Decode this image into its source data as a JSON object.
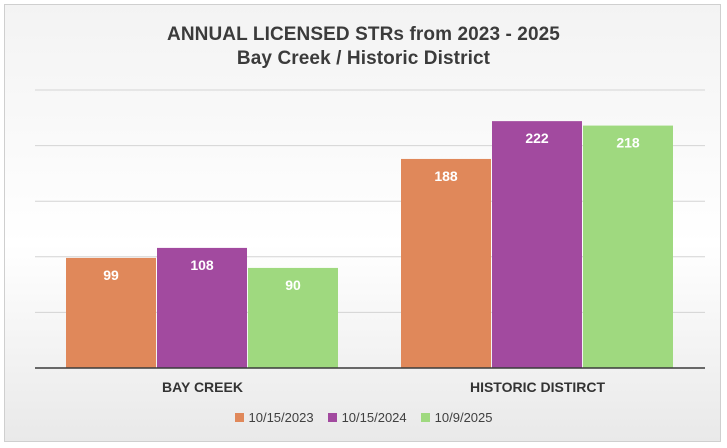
{
  "chart_data": {
    "type": "bar",
    "title": "ANNUAL LICENSED STRs from 2023 - 2025",
    "subtitle": "Bay Creek / Historic District",
    "categories": [
      "BAY CREEK",
      "HISTORIC DISTIRCT"
    ],
    "series": [
      {
        "name": "10/15/2023",
        "values": [
          99,
          188
        ],
        "color": "#e0885a"
      },
      {
        "name": "10/15/2024",
        "values": [
          108,
          222
        ],
        "color": "#a24a9f"
      },
      {
        "name": "10/9/2025",
        "values": [
          90,
          218
        ],
        "color": "#9fd97f"
      }
    ],
    "ylim": [
      0,
      250
    ],
    "grid": true,
    "legend_position": "bottom",
    "data_label_color": "#ffffff"
  }
}
